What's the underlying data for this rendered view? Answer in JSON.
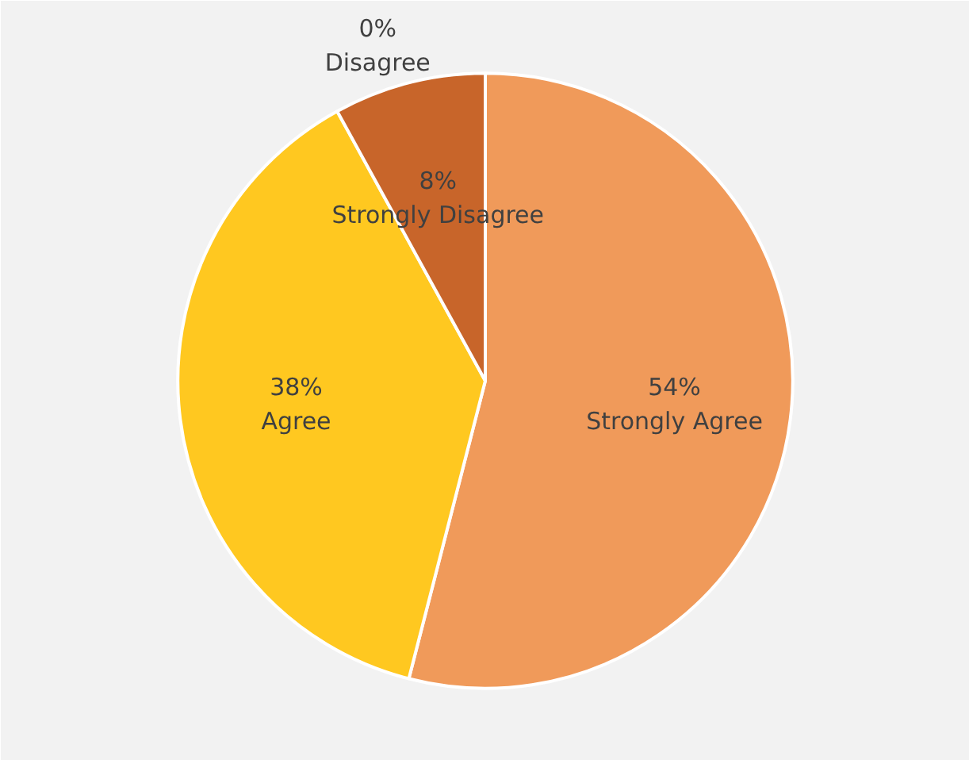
{
  "chart_data": {
    "type": "pie",
    "categories": [
      "Strongly Agree",
      "Agree",
      "Disagree",
      "Strongly Disagree"
    ],
    "values": [
      54,
      38,
      0,
      8
    ],
    "colors": [
      "#f09a5a",
      "#ffc820",
      "#e07020",
      "#c8652a"
    ],
    "value_labels": [
      "54%",
      "38%",
      "0%",
      "8%"
    ]
  }
}
